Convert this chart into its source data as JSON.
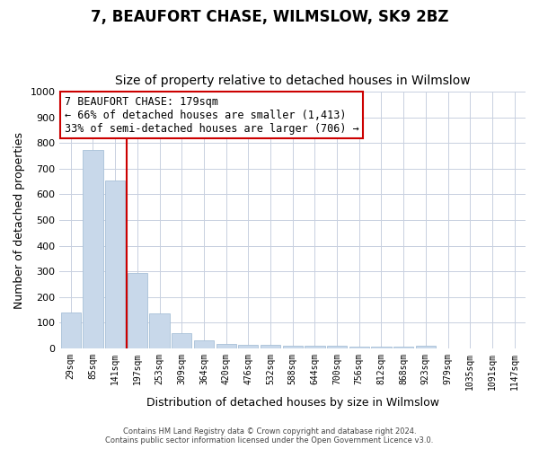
{
  "title": "7, BEAUFORT CHASE, WILMSLOW, SK9 2BZ",
  "subtitle": "Size of property relative to detached houses in Wilmslow",
  "xlabel": "Distribution of detached houses by size in Wilmslow",
  "ylabel": "Number of detached properties",
  "bar_color": "#c8d8ea",
  "bar_edge_color": "#a8c0d8",
  "grid_color": "#c8d0e0",
  "background_color": "#ffffff",
  "categories": [
    "29sqm",
    "85sqm",
    "141sqm",
    "197sqm",
    "253sqm",
    "309sqm",
    "364sqm",
    "420sqm",
    "476sqm",
    "532sqm",
    "588sqm",
    "644sqm",
    "700sqm",
    "756sqm",
    "812sqm",
    "868sqm",
    "923sqm",
    "979sqm",
    "1035sqm",
    "1091sqm",
    "1147sqm"
  ],
  "values": [
    140,
    775,
    655,
    295,
    135,
    57,
    30,
    18,
    14,
    12,
    10,
    8,
    8,
    7,
    6,
    6,
    8,
    0,
    0,
    0,
    0
  ],
  "vline_color": "#cc0000",
  "ylim": [
    0,
    1000
  ],
  "yticks": [
    0,
    100,
    200,
    300,
    400,
    500,
    600,
    700,
    800,
    900,
    1000
  ],
  "annotation_text": "7 BEAUFORT CHASE: 179sqm\n← 66% of detached houses are smaller (1,413)\n33% of semi-detached houses are larger (706) →",
  "annotation_box_color": "#ffffff",
  "annotation_box_edge_color": "#cc0000",
  "footer_line1": "Contains HM Land Registry data © Crown copyright and database right 2024.",
  "footer_line2": "Contains public sector information licensed under the Open Government Licence v3.0.",
  "title_fontsize": 12,
  "subtitle_fontsize": 10
}
